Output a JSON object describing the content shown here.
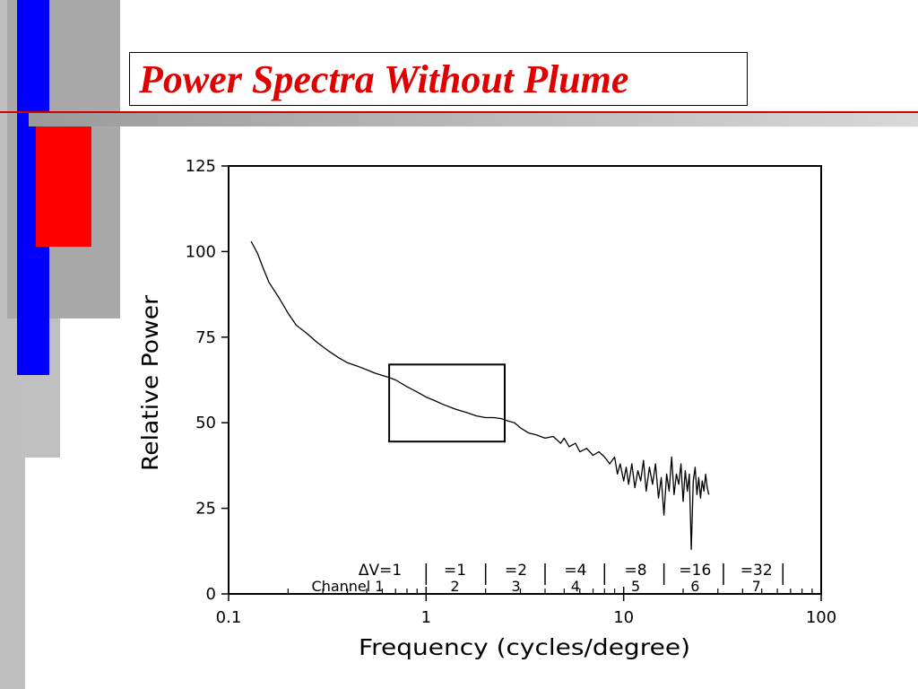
{
  "slide": {
    "title": "Power Spectra Without Plume",
    "colors": {
      "title": "#e00000",
      "blue": "#0000ff",
      "red": "#ff0000",
      "gray": "#bdbdbd"
    }
  },
  "chart_data": {
    "type": "line",
    "title": "",
    "xlabel": "Frequency (cycles/degree)",
    "ylabel": "Relative Power",
    "xscale": "log",
    "xlim": [
      0.1,
      100
    ],
    "ylim": [
      0,
      125
    ],
    "x_ticks": [
      0.1,
      1,
      10,
      100
    ],
    "x_tick_labels": [
      "0.1",
      "1",
      "10",
      "100"
    ],
    "y_ticks": [
      0,
      25,
      50,
      75,
      100,
      125
    ],
    "y_tick_labels": [
      "0",
      "25",
      "50",
      "75",
      "100",
      "125"
    ],
    "grid": false,
    "legend": "none",
    "series": [
      {
        "values": [
          [
            0.13,
            103
          ],
          [
            0.14,
            99.5
          ],
          [
            0.15,
            95
          ],
          [
            0.16,
            91
          ],
          [
            0.18,
            86.5
          ],
          [
            0.2,
            82
          ],
          [
            0.22,
            78.5
          ],
          [
            0.25,
            76
          ],
          [
            0.28,
            73.5
          ],
          [
            0.32,
            71
          ],
          [
            0.36,
            69
          ],
          [
            0.4,
            67.5
          ],
          [
            0.45,
            66.5
          ],
          [
            0.5,
            65.5
          ],
          [
            0.55,
            64.5
          ],
          [
            0.6,
            63.8
          ],
          [
            0.65,
            63.2
          ],
          [
            0.7,
            62.5
          ],
          [
            0.8,
            60.5
          ],
          [
            0.9,
            59
          ],
          [
            1.0,
            57.5
          ],
          [
            1.1,
            56.5
          ],
          [
            1.2,
            55.5
          ],
          [
            1.4,
            54
          ],
          [
            1.6,
            53
          ],
          [
            1.8,
            52
          ],
          [
            2.0,
            51.5
          ],
          [
            2.2,
            51.5
          ],
          [
            2.4,
            51.2
          ],
          [
            2.6,
            50.5
          ],
          [
            2.8,
            50
          ],
          [
            3.0,
            48.5
          ],
          [
            3.3,
            47
          ],
          [
            3.6,
            46.5
          ],
          [
            4.0,
            45.5
          ],
          [
            4.4,
            46
          ],
          [
            4.8,
            44
          ],
          [
            5.0,
            45.5
          ],
          [
            5.3,
            43
          ],
          [
            5.7,
            44
          ],
          [
            6.0,
            41.5
          ],
          [
            6.5,
            42.5
          ],
          [
            7.0,
            40.5
          ],
          [
            7.5,
            41.5
          ],
          [
            8.0,
            40
          ],
          [
            8.5,
            38
          ],
          [
            9.0,
            40
          ],
          [
            9.3,
            35
          ],
          [
            9.6,
            38
          ],
          [
            10.0,
            33
          ],
          [
            10.3,
            37
          ],
          [
            10.6,
            32
          ],
          [
            11.0,
            38
          ],
          [
            11.4,
            31
          ],
          [
            11.8,
            36
          ],
          [
            12.2,
            33
          ],
          [
            12.6,
            39
          ],
          [
            13.0,
            30
          ],
          [
            13.5,
            37
          ],
          [
            14.0,
            32
          ],
          [
            14.5,
            38
          ],
          [
            15.0,
            28
          ],
          [
            15.5,
            34
          ],
          [
            16.0,
            23
          ],
          [
            16.5,
            35
          ],
          [
            17.0,
            30
          ],
          [
            17.5,
            40
          ],
          [
            18.0,
            29
          ],
          [
            18.5,
            35
          ],
          [
            19.0,
            32
          ],
          [
            19.5,
            38
          ],
          [
            20.0,
            27
          ],
          [
            20.5,
            36
          ],
          [
            21.0,
            30
          ],
          [
            21.5,
            35
          ],
          [
            22.0,
            13
          ],
          [
            22.5,
            33
          ],
          [
            23.0,
            37
          ],
          [
            23.5,
            29
          ],
          [
            24.0,
            34
          ],
          [
            24.5,
            28
          ],
          [
            25.0,
            33
          ],
          [
            25.5,
            30
          ],
          [
            26.0,
            35
          ],
          [
            26.5,
            31
          ],
          [
            27.0,
            29
          ]
        ]
      }
    ],
    "annotations": {
      "highlight_box": {
        "x": [
          0.65,
          2.5
        ],
        "y": [
          44.5,
          67
        ]
      },
      "dv_label": "ΔV=1",
      "channel_label": "Channel",
      "bands": [
        {
          "dv": "",
          "channel": "1",
          "x": 0.58
        },
        {
          "dv": "=1",
          "channel": "2",
          "x": 1.4
        },
        {
          "dv": "=2",
          "channel": "3",
          "x": 2.85
        },
        {
          "dv": "=4",
          "channel": "4",
          "x": 5.7
        },
        {
          "dv": "=8",
          "channel": "5",
          "x": 11.5
        },
        {
          "dv": "=16",
          "channel": "6",
          "x": 23
        },
        {
          "dv": "=32",
          "channel": "7",
          "x": 47
        }
      ],
      "separators": [
        1,
        2,
        4,
        8,
        16,
        32,
        64
      ]
    }
  }
}
